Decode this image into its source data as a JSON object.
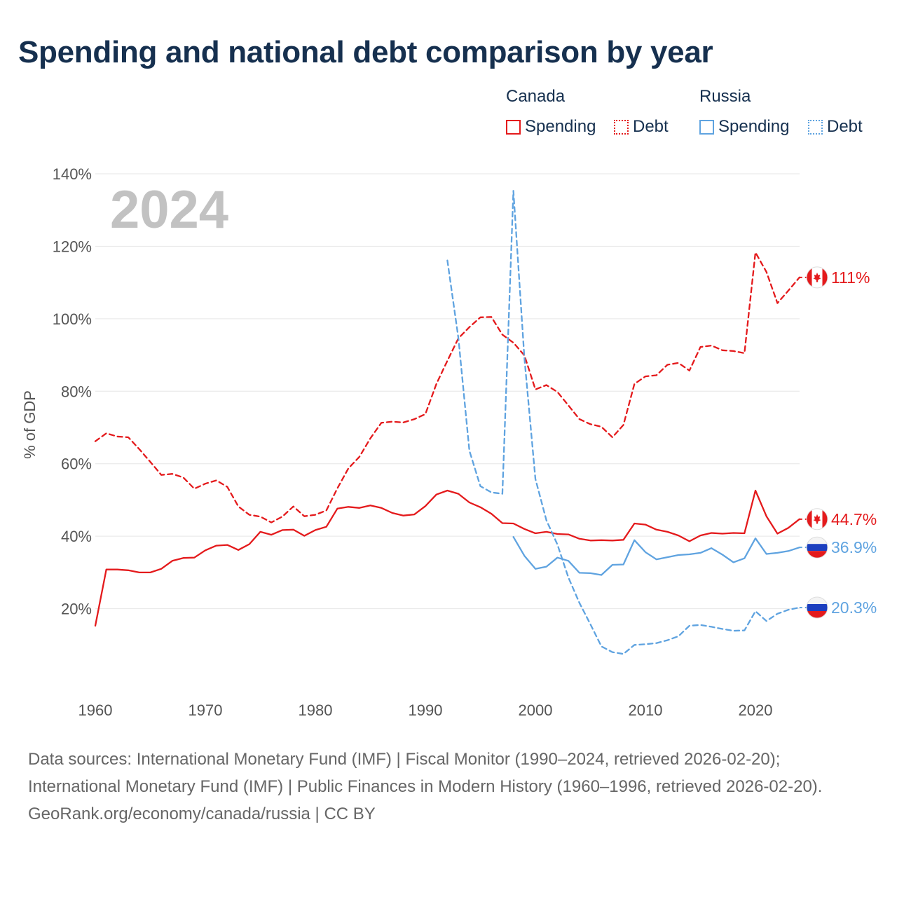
{
  "title": "Spending and national debt comparison by year",
  "legend": {
    "groups": [
      {
        "name": "Canada",
        "spending_label": "Spending",
        "debt_label": "Debt",
        "color": "#e41a1c"
      },
      {
        "name": "Russia",
        "spending_label": "Spending",
        "debt_label": "Debt",
        "color": "#5fa3e0"
      }
    ]
  },
  "chart_data": {
    "type": "line",
    "title": "Spending and national debt comparison by year",
    "xlabel": "",
    "ylabel": "% of GDP",
    "xlim": [
      1960,
      2024
    ],
    "ylim": [
      0,
      140
    ],
    "x_ticks": [
      1960,
      1970,
      1980,
      1990,
      2000,
      2010,
      2020
    ],
    "y_ticks": [
      20,
      40,
      60,
      80,
      100,
      120,
      140
    ],
    "y_tick_labels": [
      "20%",
      "40%",
      "60%",
      "80%",
      "100%",
      "120%",
      "140%"
    ],
    "grid": true,
    "annotation_year": "2024",
    "series": [
      {
        "name": "Canada Spending",
        "country": "Canada",
        "style": "solid",
        "color": "#e41a1c",
        "end_label": "44.7%",
        "flag": "canada",
        "x": [
          1960,
          1961,
          1962,
          1963,
          1964,
          1965,
          1966,
          1967,
          1968,
          1969,
          1970,
          1971,
          1972,
          1973,
          1974,
          1975,
          1976,
          1977,
          1978,
          1979,
          1980,
          1981,
          1982,
          1983,
          1984,
          1985,
          1986,
          1987,
          1988,
          1989,
          1990,
          1991,
          1992,
          1993,
          1994,
          1995,
          1996,
          1997,
          1998,
          1999,
          2000,
          2001,
          2002,
          2003,
          2004,
          2005,
          2006,
          2007,
          2008,
          2009,
          2010,
          2011,
          2012,
          2013,
          2014,
          2015,
          2016,
          2017,
          2018,
          2019,
          2020,
          2021,
          2022,
          2023,
          2024
        ],
        "values": [
          15.3,
          30.8,
          30.8,
          30.6,
          30.0,
          30.0,
          31.0,
          33.2,
          34.0,
          34.1,
          36.1,
          37.4,
          37.6,
          36.2,
          37.8,
          41.2,
          40.4,
          41.7,
          41.8,
          40.1,
          41.7,
          42.6,
          47.6,
          48.1,
          47.8,
          48.5,
          47.8,
          46.4,
          45.7,
          46.0,
          48.3,
          51.5,
          52.6,
          51.7,
          49.3,
          48.0,
          46.2,
          43.6,
          43.5,
          42.0,
          40.8,
          41.2,
          40.6,
          40.5,
          39.3,
          38.8,
          38.9,
          38.8,
          39.0,
          43.5,
          43.2,
          41.8,
          41.2,
          40.2,
          38.6,
          40.2,
          40.9,
          40.7,
          40.9,
          40.8,
          52.6,
          45.5,
          40.7,
          42.3,
          44.7
        ]
      },
      {
        "name": "Canada Debt",
        "country": "Canada",
        "style": "dashed",
        "color": "#e41a1c",
        "end_label": "111%",
        "flag": "canada",
        "x": [
          1960,
          1961,
          1962,
          1963,
          1964,
          1965,
          1966,
          1967,
          1968,
          1969,
          1970,
          1971,
          1972,
          1973,
          1974,
          1975,
          1976,
          1977,
          1978,
          1979,
          1980,
          1981,
          1982,
          1983,
          1984,
          1985,
          1986,
          1987,
          1988,
          1989,
          1990,
          1991,
          1992,
          1993,
          1994,
          1995,
          1996,
          1997,
          1998,
          1999,
          2000,
          2001,
          2002,
          2003,
          2004,
          2005,
          2006,
          2007,
          2008,
          2009,
          2010,
          2011,
          2012,
          2013,
          2014,
          2015,
          2016,
          2017,
          2018,
          2019,
          2020,
          2021,
          2022,
          2023,
          2024
        ],
        "values": [
          66.2,
          68.4,
          67.5,
          67.3,
          64.0,
          60.5,
          56.9,
          57.2,
          56.2,
          53.1,
          54.5,
          55.4,
          53.6,
          48.2,
          45.9,
          45.4,
          43.8,
          45.4,
          48.2,
          45.5,
          45.9,
          47.1,
          53.2,
          58.7,
          61.9,
          67.0,
          71.3,
          71.6,
          71.4,
          72.3,
          73.7,
          82.0,
          88.4,
          94.6,
          97.7,
          100.4,
          100.5,
          95.6,
          93.4,
          89.9,
          80.5,
          81.7,
          79.8,
          76.1,
          72.3,
          70.9,
          70.2,
          67.3,
          70.7,
          82.0,
          84.1,
          84.4,
          87.3,
          87.8,
          85.7,
          92.2,
          92.6,
          91.3,
          91.1,
          90.5,
          118.3,
          112.9,
          104.3,
          107.8,
          111.4
        ]
      },
      {
        "name": "Russia Spending",
        "country": "Russia",
        "style": "solid",
        "color": "#5fa3e0",
        "end_label": "36.9%",
        "flag": "russia",
        "x": [
          1998,
          1999,
          2000,
          2001,
          2002,
          2003,
          2004,
          2005,
          2006,
          2007,
          2008,
          2009,
          2010,
          2011,
          2012,
          2013,
          2014,
          2015,
          2016,
          2017,
          2018,
          2019,
          2020,
          2021,
          2022,
          2023,
          2024
        ],
        "values": [
          39.8,
          34.6,
          31.0,
          31.6,
          34.1,
          33.2,
          29.9,
          29.8,
          29.3,
          32.1,
          32.2,
          38.9,
          35.6,
          33.6,
          34.2,
          34.8,
          35.0,
          35.4,
          36.7,
          34.9,
          32.8,
          33.9,
          39.4,
          35.1,
          35.4,
          35.9,
          36.9
        ]
      },
      {
        "name": "Russia Debt",
        "country": "Russia",
        "style": "dashed",
        "color": "#5fa3e0",
        "end_label": "20.3%",
        "flag": "russia",
        "x": [
          1992,
          1993,
          1994,
          1995,
          1996,
          1997,
          1998,
          1999,
          2000,
          2001,
          2002,
          2003,
          2004,
          2005,
          2006,
          2007,
          2008,
          2009,
          2010,
          2011,
          2012,
          2013,
          2014,
          2015,
          2016,
          2017,
          2018,
          2019,
          2020,
          2021,
          2022,
          2023,
          2024
        ],
        "values": [
          116.1,
          94.7,
          63.6,
          53.8,
          52.1,
          51.7,
          135.3,
          89.2,
          55.8,
          44.4,
          37.7,
          28.6,
          21.6,
          15.7,
          9.6,
          8.0,
          7.5,
          10.0,
          10.2,
          10.5,
          11.3,
          12.4,
          15.3,
          15.5,
          15.0,
          14.4,
          13.9,
          14.0,
          19.3,
          16.6,
          18.6,
          19.7,
          20.3
        ]
      }
    ]
  },
  "footer": {
    "sources": "Data sources: International Monetary Fund (IMF) | Fiscal Monitor (1990–2024, retrieved 2026-02-20); International Monetary Fund (IMF) | Public Finances in Modern History (1960–1996, retrieved 2026-02-20).",
    "credit": "GeoRank.org/economy/canada/russia | CC BY"
  }
}
